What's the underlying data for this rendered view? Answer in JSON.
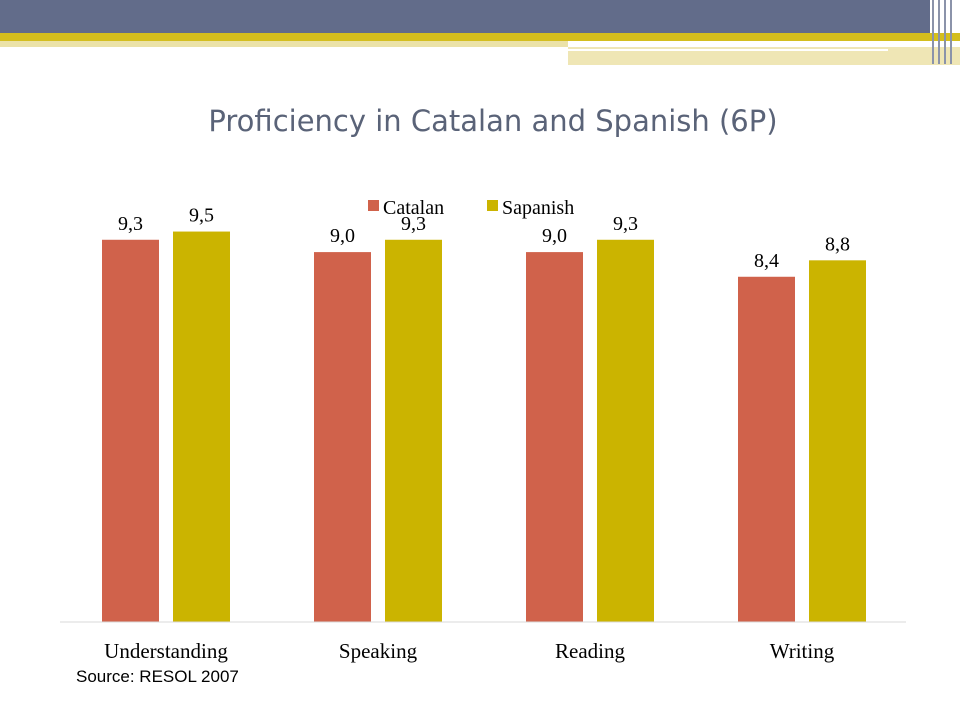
{
  "page": {
    "title": "Proficiency in Catalan and Spanish (6P)",
    "source": "Source: RESOL 2007"
  },
  "colors": {
    "catalan": "#d0624b",
    "spanish": "#cbb400",
    "banner": "#626c8a",
    "stripe": "#d4be1e"
  },
  "chart_data": {
    "type": "bar",
    "title": "Proficiency in Catalan and Spanish (6P)",
    "categories": [
      "Understanding",
      "Speaking",
      "Reading",
      "Writing"
    ],
    "series": [
      {
        "name": "Catalan",
        "values": [
          9.3,
          9.0,
          9.0,
          8.4
        ],
        "labels": [
          "9,3",
          "9,0",
          "9,0",
          "8,4"
        ],
        "color": "#d0624b"
      },
      {
        "name": "Sapanish",
        "values": [
          9.5,
          9.3,
          9.3,
          8.8
        ],
        "labels": [
          "9,5",
          "9,3",
          "9,3",
          "8,8"
        ],
        "color": "#cbb400"
      }
    ],
    "legend": "top-center",
    "grid": false,
    "ylim": [
      0,
      10
    ]
  }
}
